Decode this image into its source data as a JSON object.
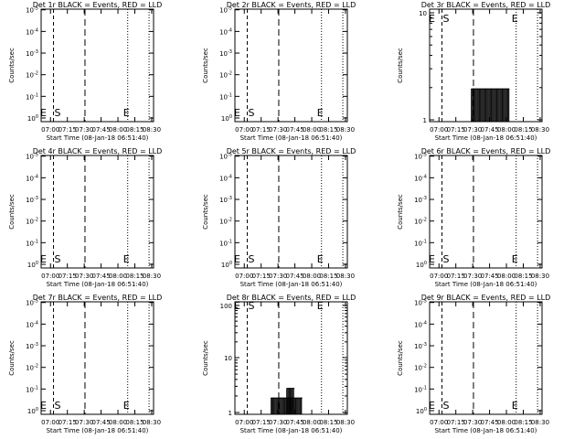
{
  "figure": {
    "background": "#ffffff",
    "ink": "#000000",
    "xlabel": "Start Time (08-Jan-18 06:51:40)",
    "ylabel": "Counts/sec",
    "xticks": [
      "07:00",
      "07:15",
      "07:30",
      "07:45",
      "08:00",
      "08:15",
      "08:30"
    ],
    "marker_S": "S",
    "marker_E": "E"
  },
  "chart_data": [
    {
      "type": "line",
      "title": "Det 1r BLACK = Events, RED = LLD",
      "yscale": "log",
      "ytick_labels": [
        "10^0",
        "10^-1",
        "10^-2",
        "10^-3",
        "10^-4",
        "10^-5"
      ],
      "x_minutes": [
        0,
        100
      ],
      "events": []
    },
    {
      "type": "line",
      "title": "Det 2r BLACK = Events, RED = LLD",
      "yscale": "log",
      "ytick_labels": [
        "10^0",
        "10^-1",
        "10^-2",
        "10^-3",
        "10^-4",
        "10^-5"
      ],
      "x_minutes": [
        0,
        100
      ],
      "events": []
    },
    {
      "type": "line",
      "title": "Det 3r BLACK = Events, RED = LLD",
      "yscale": "log",
      "ytick_labels": [
        "1",
        "10"
      ],
      "x_minutes": [
        0,
        100
      ],
      "events": [
        {
          "start": 37,
          "end": 71,
          "value": 2
        }
      ]
    },
    {
      "type": "line",
      "title": "Det 4r BLACK = Events, RED = LLD",
      "yscale": "log",
      "ytick_labels": [
        "10^0",
        "10^-1",
        "10^-2",
        "10^-3",
        "10^-4",
        "10^-5"
      ],
      "x_minutes": [
        0,
        100
      ],
      "events": []
    },
    {
      "type": "line",
      "title": "Det 5r BLACK = Events, RED = LLD",
      "yscale": "log",
      "ytick_labels": [
        "10^0",
        "10^-1",
        "10^-2",
        "10^-3",
        "10^-4",
        "10^-5"
      ],
      "x_minutes": [
        0,
        100
      ],
      "events": []
    },
    {
      "type": "line",
      "title": "Det 6r BLACK = Events, RED = LLD",
      "yscale": "log",
      "ytick_labels": [
        "10^0",
        "10^-1",
        "10^-2",
        "10^-3",
        "10^-4",
        "10^-5"
      ],
      "x_minutes": [
        0,
        100
      ],
      "events": []
    },
    {
      "type": "line",
      "title": "Det 7r BLACK = Events, RED = LLD",
      "yscale": "log",
      "ytick_labels": [
        "10^0",
        "10^-1",
        "10^-2",
        "10^-3",
        "10^-4",
        "10^-5"
      ],
      "x_minutes": [
        0,
        100
      ],
      "events": []
    },
    {
      "type": "line",
      "title": "Det 8r BLACK = Events, RED = LLD",
      "yscale": "log",
      "ytick_labels": [
        "1",
        "10",
        "100"
      ],
      "x_minutes": [
        0,
        100
      ],
      "events": [
        {
          "start": 32,
          "end": 60,
          "value": 2
        },
        {
          "start": 46,
          "end": 53,
          "value": 3
        }
      ]
    },
    {
      "type": "line",
      "title": "Det 9r BLACK = Events, RED = LLD",
      "yscale": "log",
      "ytick_labels": [
        "10^0",
        "10^-1",
        "10^-2",
        "10^-3",
        "10^-4",
        "10^-5"
      ],
      "x_minutes": [
        0,
        100
      ],
      "events": []
    }
  ]
}
